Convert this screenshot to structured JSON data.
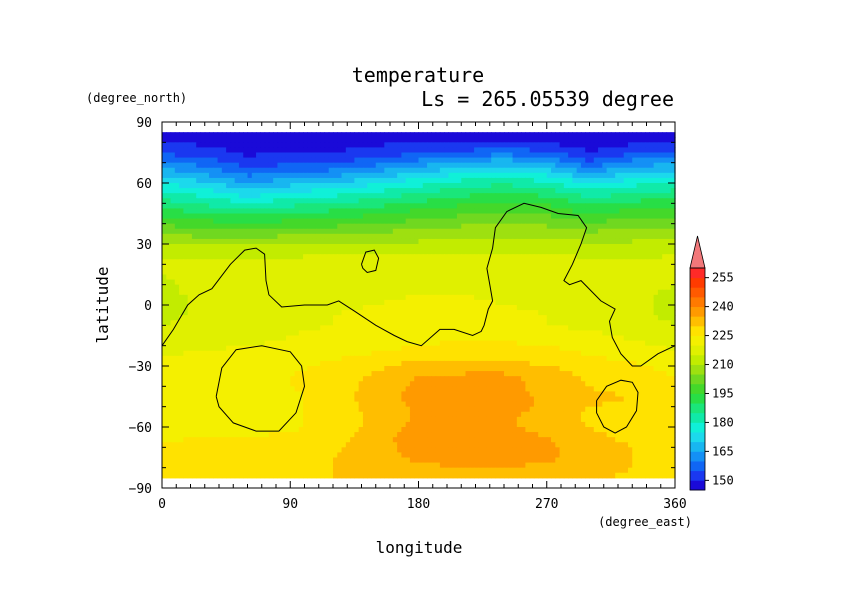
{
  "chart_data": {
    "type": "heatmap",
    "title": "temperature",
    "subtitle": "Ls = 265.05539 degree",
    "xlabel": "longitude",
    "ylabel": "latitude",
    "x_units": "(degree_east)",
    "y_units": "(degree_north)",
    "xlim": [
      0,
      360
    ],
    "ylim": [
      -90,
      90
    ],
    "x_ticks": [
      0,
      90,
      180,
      270,
      360
    ],
    "y_ticks": [
      90,
      60,
      30,
      0,
      -30,
      -60,
      -90
    ],
    "x_tick_labels": [
      "0",
      "90",
      "180",
      "270",
      "360"
    ],
    "y_tick_labels": [
      "90",
      "60",
      "30",
      "0",
      "−30",
      "−60",
      "−90"
    ],
    "colorbar": {
      "levels": [
        145,
        150,
        155,
        160,
        165,
        170,
        175,
        180,
        185,
        190,
        195,
        200,
        205,
        210,
        215,
        220,
        225,
        230,
        235,
        240,
        245,
        250,
        255,
        260
      ],
      "colors": [
        "#1a0ad8",
        "#1a38f0",
        "#1066f5",
        "#1490f5",
        "#18b6f0",
        "#1cd9ec",
        "#10f0d8",
        "#10eaa8",
        "#1ae67a",
        "#28de46",
        "#44d82a",
        "#70d820",
        "#9ee010",
        "#c2ec00",
        "#e0f000",
        "#f4f000",
        "#ffe200",
        "#ffbe00",
        "#ff9a00",
        "#ff7a00",
        "#ff5a00",
        "#ff3b00",
        "#ff2a28",
        "#f2787a"
      ],
      "tick_labels": [
        "150",
        "165",
        "180",
        "195",
        "210",
        "225",
        "240",
        "255"
      ],
      "extend": "max"
    },
    "latitudes": [
      85,
      80,
      75,
      70,
      65,
      60,
      55,
      50,
      45,
      40,
      35,
      30,
      25,
      20,
      15,
      10,
      5,
      0,
      -5,
      -10,
      -15,
      -20,
      -25,
      -30,
      -35,
      -40,
      -45,
      -50,
      -55,
      -60,
      -65,
      -70,
      -75,
      -80,
      -85
    ],
    "longitudes": [
      0,
      30,
      60,
      90,
      120,
      150,
      180,
      210,
      240,
      270,
      300,
      330,
      360
    ],
    "values": [
      [
        148,
        148,
        148,
        148,
        148,
        148,
        148,
        148,
        148,
        148,
        148,
        148,
        148
      ],
      [
        150,
        149,
        148,
        148,
        148,
        149,
        150,
        150,
        150,
        149,
        148,
        149,
        150
      ],
      [
        154,
        152,
        149,
        150,
        150,
        152,
        154,
        156,
        158,
        156,
        150,
        154,
        156
      ],
      [
        160,
        158,
        152,
        154,
        155,
        158,
        162,
        166,
        168,
        165,
        156,
        162,
        164
      ],
      [
        168,
        164,
        158,
        160,
        162,
        166,
        170,
        174,
        176,
        173,
        165,
        170,
        172
      ],
      [
        175,
        171,
        165,
        168,
        170,
        174,
        178,
        182,
        184,
        181,
        174,
        178,
        180
      ],
      [
        181,
        178,
        172,
        176,
        178,
        181,
        185,
        188,
        190,
        188,
        182,
        185,
        187
      ],
      [
        187,
        184,
        180,
        183,
        185,
        188,
        191,
        194,
        196,
        194,
        189,
        191,
        193
      ],
      [
        193,
        190,
        188,
        190,
        192,
        194,
        197,
        199,
        200,
        199,
        195,
        197,
        198
      ],
      [
        199,
        197,
        196,
        197,
        198,
        200,
        202,
        204,
        205,
        204,
        201,
        202,
        203
      ],
      [
        205,
        203,
        202,
        204,
        205,
        206,
        207,
        208,
        209,
        208,
        206,
        207,
        208
      ],
      [
        210,
        209,
        209,
        210,
        211,
        211,
        211,
        212,
        212,
        212,
        211,
        211,
        212
      ],
      [
        214,
        214,
        214,
        214,
        215,
        215,
        215,
        215,
        215,
        215,
        214,
        214,
        215
      ],
      [
        216,
        217,
        217,
        217,
        217,
        217,
        218,
        218,
        217,
        217,
        217,
        216,
        216
      ],
      [
        215,
        217,
        219,
        218,
        218,
        218,
        219,
        219,
        218,
        218,
        218,
        217,
        216
      ],
      [
        214,
        217,
        219,
        218,
        218,
        219,
        220,
        219,
        218,
        218,
        218,
        217,
        215
      ],
      [
        214,
        216,
        218,
        218,
        218,
        219,
        220,
        220,
        219,
        218,
        218,
        216,
        214
      ],
      [
        213,
        216,
        218,
        219,
        219,
        220,
        221,
        221,
        220,
        219,
        218,
        216,
        214
      ],
      [
        214,
        216,
        217,
        219,
        220,
        221,
        221,
        221,
        221,
        220,
        219,
        216,
        214
      ],
      [
        215,
        216,
        217,
        219,
        220,
        221,
        222,
        222,
        221,
        220,
        219,
        217,
        215
      ],
      [
        216,
        217,
        218,
        220,
        221,
        222,
        223,
        224,
        223,
        222,
        221,
        219,
        217
      ],
      [
        218,
        219,
        220,
        221,
        222,
        223,
        225,
        226,
        226,
        225,
        223,
        221,
        219
      ],
      [
        220,
        221,
        222,
        222,
        224,
        226,
        228,
        229,
        228,
        227,
        225,
        223,
        221
      ],
      [
        222,
        223,
        224,
        224,
        226,
        229,
        232,
        232,
        232,
        230,
        228,
        226,
        223
      ],
      [
        223,
        224,
        224,
        225,
        227,
        231,
        235,
        236,
        236,
        233,
        229,
        227,
        225
      ],
      [
        223,
        224,
        224,
        225,
        227,
        232,
        236,
        238,
        237,
        233,
        230,
        228,
        226
      ],
      [
        223,
        223,
        223,
        224,
        227,
        233,
        237,
        238,
        237,
        234,
        231,
        230,
        227
      ],
      [
        222,
        222,
        223,
        224,
        227,
        232,
        236,
        238,
        237,
        234,
        230,
        229,
        226
      ],
      [
        221,
        222,
        223,
        224,
        227,
        231,
        236,
        237,
        236,
        233,
        229,
        228,
        226
      ],
      [
        222,
        223,
        223,
        224,
        227,
        231,
        237,
        238,
        236,
        233,
        230,
        228,
        226
      ],
      [
        224,
        225,
        225,
        226,
        228,
        233,
        238,
        239,
        238,
        235,
        231,
        229,
        227
      ],
      [
        226,
        227,
        227,
        228,
        229,
        233,
        237,
        238,
        238,
        236,
        232,
        230,
        228
      ],
      [
        227,
        227,
        228,
        229,
        230,
        233,
        236,
        237,
        237,
        236,
        233,
        230,
        228
      ],
      [
        227,
        227,
        228,
        229,
        230,
        232,
        234,
        235,
        235,
        234,
        232,
        230,
        228
      ],
      [
        227,
        227,
        228,
        229,
        230,
        231,
        232,
        233,
        233,
        232,
        231,
        229,
        228
      ]
    ],
    "contours": [
      [
        [
          0,
          -20
        ],
        [
          8,
          -12
        ],
        [
          18,
          0
        ],
        [
          26,
          5
        ],
        [
          35,
          8
        ],
        [
          48,
          20
        ],
        [
          58,
          27
        ],
        [
          66,
          28
        ],
        [
          72,
          25
        ],
        [
          73,
          12
        ],
        [
          75,
          5
        ],
        [
          84,
          -1
        ],
        [
          100,
          0
        ],
        [
          116,
          0
        ],
        [
          124,
          2
        ],
        [
          135,
          -3
        ],
        [
          150,
          -10
        ],
        [
          163,
          -15
        ],
        [
          172,
          -18
        ],
        [
          182,
          -20
        ],
        [
          195,
          -12
        ],
        [
          205,
          -12
        ],
        [
          218,
          -15
        ],
        [
          224,
          -13
        ],
        [
          226,
          -10
        ],
        [
          229,
          -2
        ],
        [
          232,
          2
        ],
        [
          230,
          10
        ],
        [
          228,
          18
        ],
        [
          232,
          28
        ],
        [
          234,
          38
        ],
        [
          242,
          46
        ],
        [
          254,
          50
        ],
        [
          266,
          48
        ],
        [
          278,
          45
        ],
        [
          292,
          44
        ],
        [
          298,
          38
        ],
        [
          294,
          30
        ],
        [
          288,
          20
        ],
        [
          282,
          12
        ],
        [
          286,
          10
        ],
        [
          294,
          12
        ],
        [
          308,
          2
        ],
        [
          318,
          -2
        ],
        [
          314,
          -8
        ],
        [
          316,
          -16
        ],
        [
          322,
          -24
        ],
        [
          330,
          -30
        ],
        [
          336,
          -30
        ],
        [
          348,
          -24
        ],
        [
          360,
          -20
        ]
      ],
      [
        [
          140,
          20
        ],
        [
          143,
          26
        ],
        [
          149,
          27
        ],
        [
          152,
          23
        ],
        [
          150,
          17
        ],
        [
          144,
          16
        ],
        [
          141,
          18
        ],
        [
          140,
          20
        ]
      ],
      [
        [
          38,
          -45
        ],
        [
          42,
          -31
        ],
        [
          52,
          -22
        ],
        [
          70,
          -20
        ],
        [
          90,
          -23
        ],
        [
          98,
          -30
        ],
        [
          100,
          -40
        ],
        [
          94,
          -53
        ],
        [
          82,
          -62
        ],
        [
          66,
          -62
        ],
        [
          50,
          -58
        ],
        [
          40,
          -50
        ],
        [
          38,
          -45
        ]
      ],
      [
        [
          305,
          -47
        ],
        [
          312,
          -40
        ],
        [
          322,
          -37
        ],
        [
          330,
          -38
        ],
        [
          334,
          -43
        ],
        [
          333,
          -52
        ],
        [
          326,
          -60
        ],
        [
          318,
          -63
        ],
        [
          310,
          -60
        ],
        [
          305,
          -53
        ],
        [
          305,
          -47
        ]
      ]
    ]
  }
}
